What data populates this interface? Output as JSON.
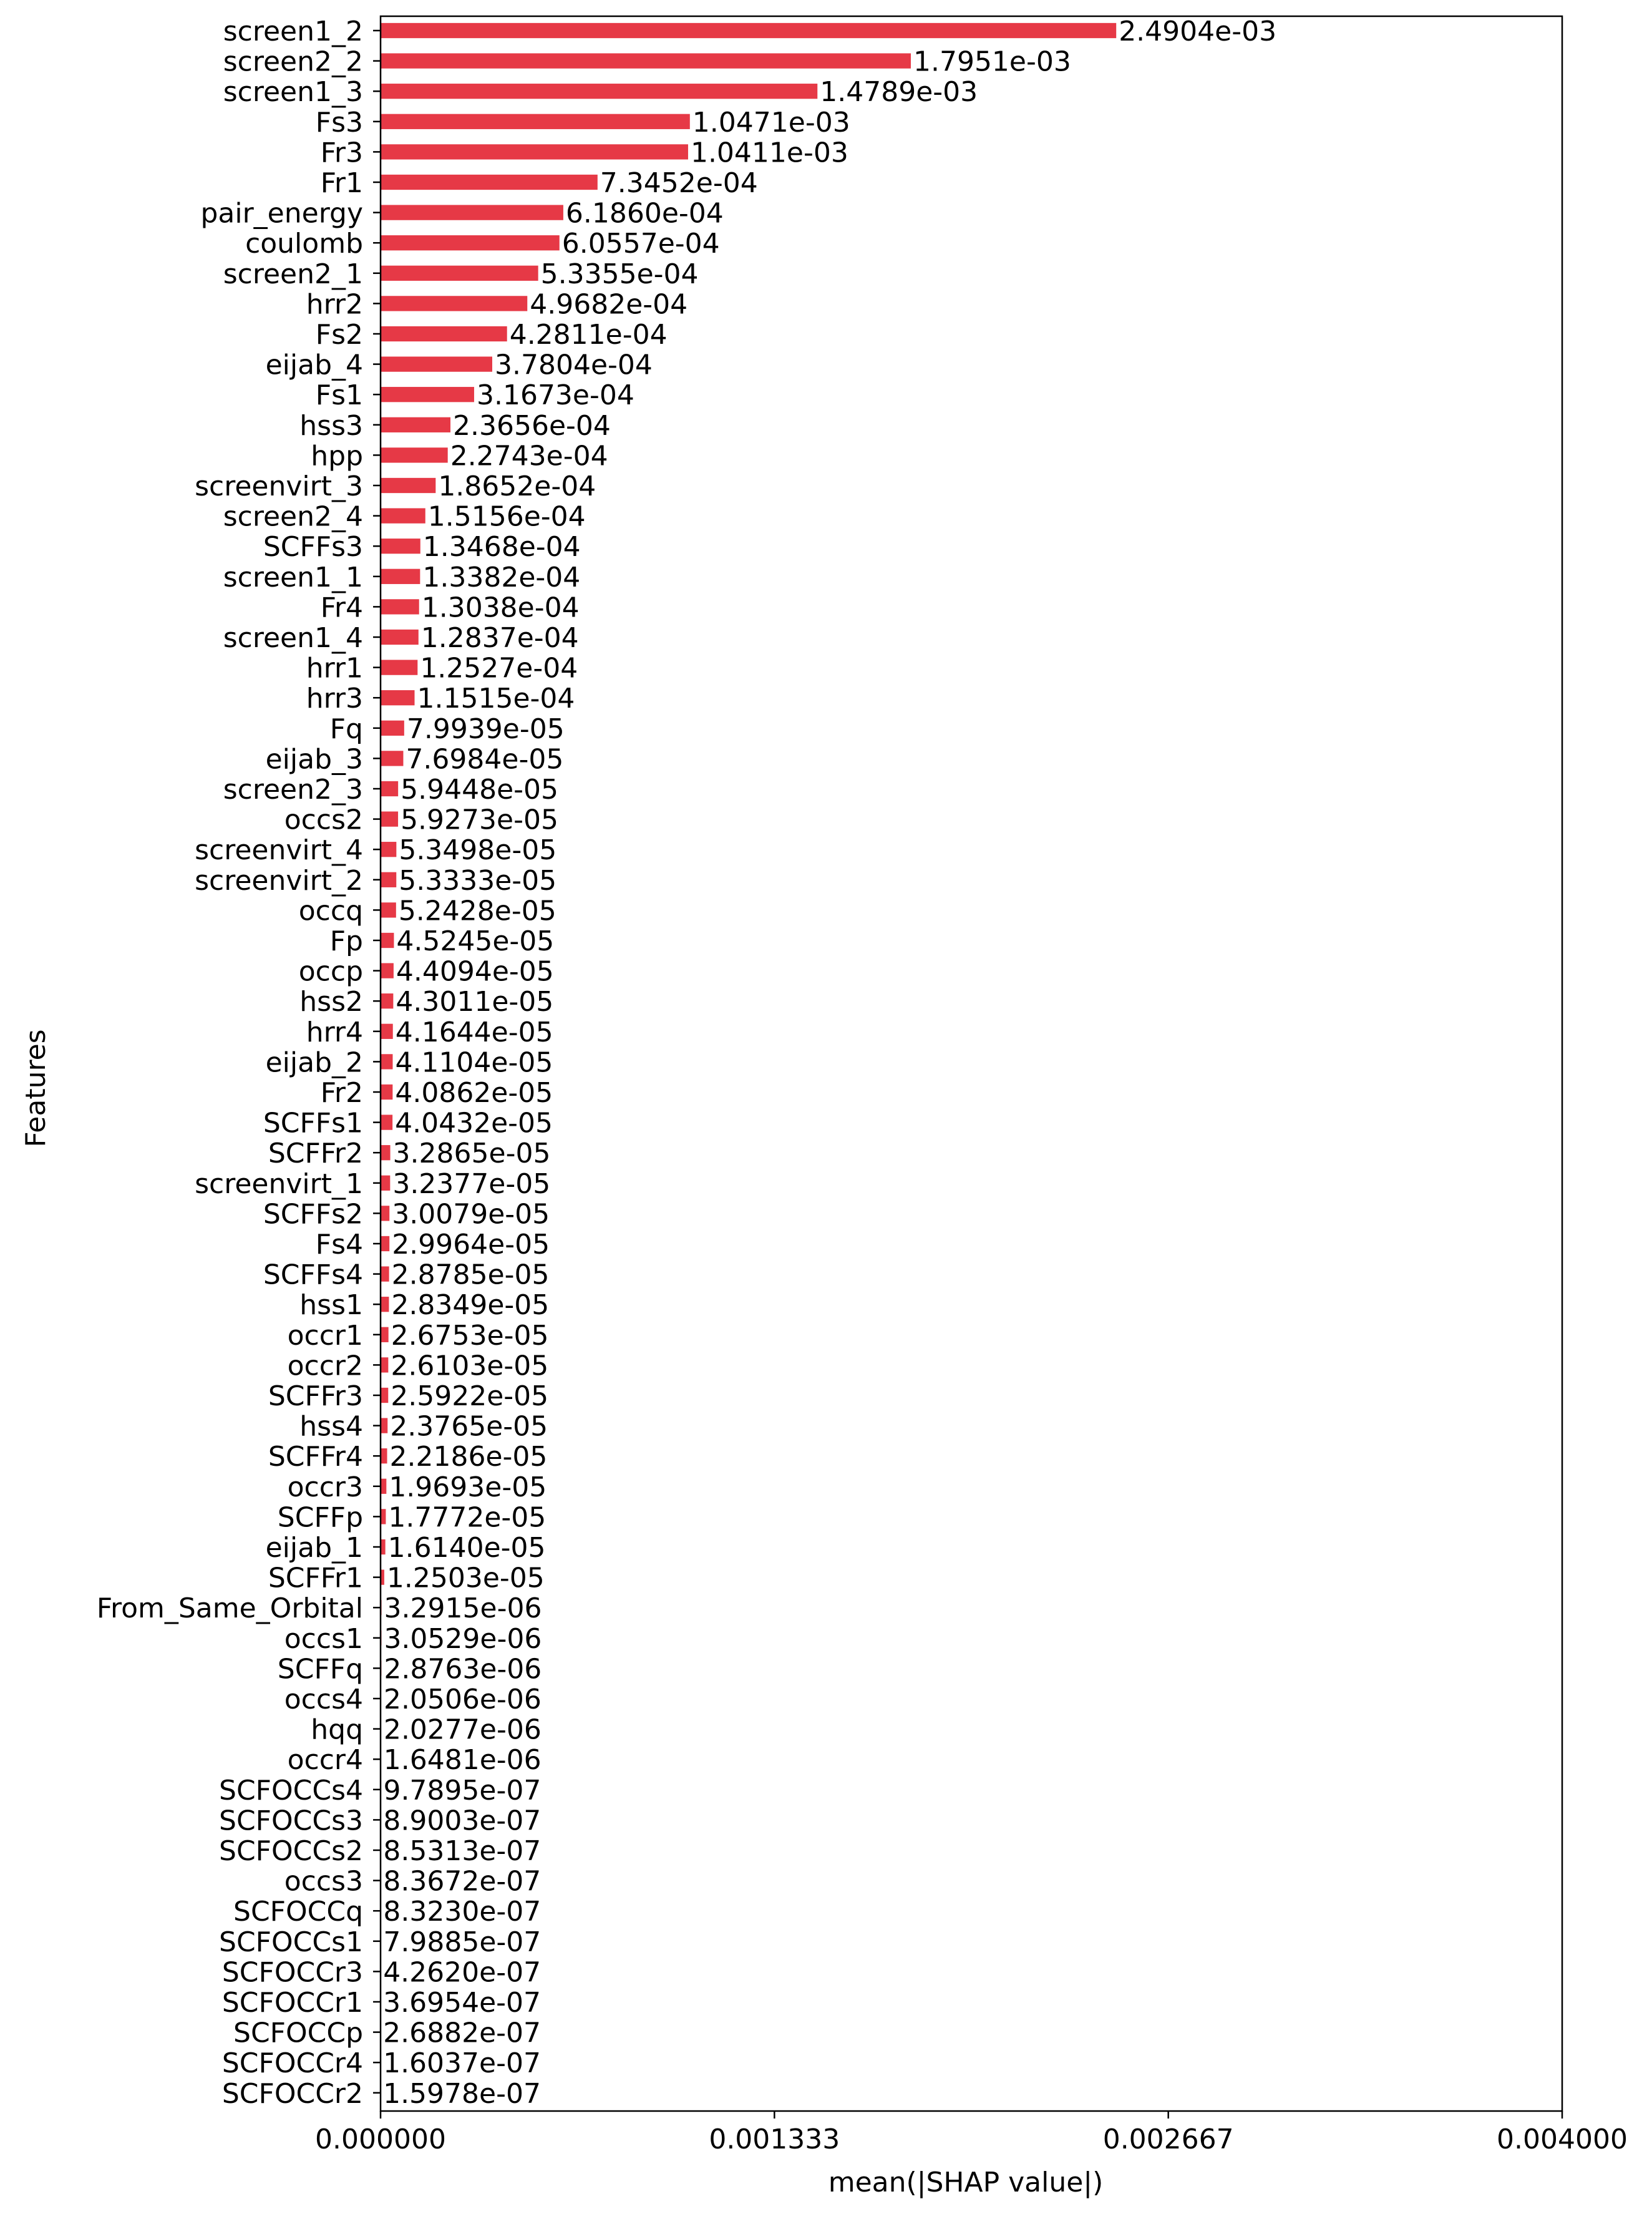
{
  "chart_data": {
    "type": "bar",
    "orientation": "horizontal",
    "title": "",
    "xlabel": "mean(|SHAP value|)",
    "ylabel": "Features",
    "xlim": [
      0,
      0.004
    ],
    "xticks": [
      "0.000000",
      "0.001333",
      "0.002667",
      "0.004000"
    ],
    "xtick_values": [
      0,
      0.0013333,
      0.0026667,
      0.004
    ],
    "bar_color": "#e63946",
    "grid": false,
    "legend": "none",
    "categories": [
      "screen1_2",
      "screen2_2",
      "screen1_3",
      "Fs3",
      "Fr3",
      "Fr1",
      "pair_energy",
      "coulomb",
      "screen2_1",
      "hrr2",
      "Fs2",
      "eijab_4",
      "Fs1",
      "hss3",
      "hpp",
      "screenvirt_3",
      "screen2_4",
      "SCFFs3",
      "screen1_1",
      "Fr4",
      "screen1_4",
      "hrr1",
      "hrr3",
      "Fq",
      "eijab_3",
      "screen2_3",
      "occs2",
      "screenvirt_4",
      "screenvirt_2",
      "occq",
      "Fp",
      "occp",
      "hss2",
      "hrr4",
      "eijab_2",
      "Fr2",
      "SCFFs1",
      "SCFFr2",
      "screenvirt_1",
      "SCFFs2",
      "Fs4",
      "SCFFs4",
      "hss1",
      "occr1",
      "occr2",
      "SCFFr3",
      "hss4",
      "SCFFr4",
      "occr3",
      "SCFFp",
      "eijab_1",
      "SCFFr1",
      "From_Same_Orbital",
      "occs1",
      "SCFFq",
      "occs4",
      "hqq",
      "occr4",
      "SCFOCCs4",
      "SCFOCCs3",
      "SCFOCCs2",
      "occs3",
      "SCFOCCq",
      "SCFOCCs1",
      "SCFOCCr3",
      "SCFOCCr1",
      "SCFOCCp",
      "SCFOCCr4",
      "SCFOCCr2"
    ],
    "values": [
      0.0024904,
      0.0017951,
      0.0014789,
      0.0010471,
      0.0010411,
      0.00073452,
      0.0006186,
      0.00060557,
      0.00053355,
      0.00049682,
      0.00042811,
      0.00037804,
      0.00031673,
      0.00023656,
      0.00022743,
      0.00018652,
      0.00015156,
      0.00013468,
      0.00013382,
      0.00013038,
      0.00012837,
      0.00012527,
      0.00011515,
      7.9939e-05,
      7.6984e-05,
      5.9448e-05,
      5.9273e-05,
      5.3498e-05,
      5.3333e-05,
      5.2428e-05,
      4.5245e-05,
      4.4094e-05,
      4.3011e-05,
      4.1644e-05,
      4.1104e-05,
      4.0862e-05,
      4.0432e-05,
      3.2865e-05,
      3.2377e-05,
      3.0079e-05,
      2.9964e-05,
      2.8785e-05,
      2.8349e-05,
      2.6753e-05,
      2.6103e-05,
      2.5922e-05,
      2.3765e-05,
      2.2186e-05,
      1.9693e-05,
      1.7772e-05,
      1.614e-05,
      1.2503e-05,
      3.2915e-06,
      3.0529e-06,
      2.8763e-06,
      2.0506e-06,
      2.0277e-06,
      1.6481e-06,
      9.7895e-07,
      8.9003e-07,
      8.5313e-07,
      8.3672e-07,
      8.323e-07,
      7.9885e-07,
      4.262e-07,
      3.6954e-07,
      2.6882e-07,
      1.6037e-07,
      1.5978e-07
    ],
    "value_labels": [
      "2.4904e-03",
      "1.7951e-03",
      "1.4789e-03",
      "1.0471e-03",
      "1.0411e-03",
      "7.3452e-04",
      "6.1860e-04",
      "6.0557e-04",
      "5.3355e-04",
      "4.9682e-04",
      "4.2811e-04",
      "3.7804e-04",
      "3.1673e-04",
      "2.3656e-04",
      "2.2743e-04",
      "1.8652e-04",
      "1.5156e-04",
      "1.3468e-04",
      "1.3382e-04",
      "1.3038e-04",
      "1.2837e-04",
      "1.2527e-04",
      "1.1515e-04",
      "7.9939e-05",
      "7.6984e-05",
      "5.9448e-05",
      "5.9273e-05",
      "5.3498e-05",
      "5.3333e-05",
      "5.2428e-05",
      "4.5245e-05",
      "4.4094e-05",
      "4.3011e-05",
      "4.1644e-05",
      "4.1104e-05",
      "4.0862e-05",
      "4.0432e-05",
      "3.2865e-05",
      "3.2377e-05",
      "3.0079e-05",
      "2.9964e-05",
      "2.8785e-05",
      "2.8349e-05",
      "2.6753e-05",
      "2.6103e-05",
      "2.5922e-05",
      "2.3765e-05",
      "2.2186e-05",
      "1.9693e-05",
      "1.7772e-05",
      "1.6140e-05",
      "1.2503e-05",
      "3.2915e-06",
      "3.0529e-06",
      "2.8763e-06",
      "2.0506e-06",
      "2.0277e-06",
      "1.6481e-06",
      "9.7895e-07",
      "8.9003e-07",
      "8.5313e-07",
      "8.3672e-07",
      "8.3230e-07",
      "7.9885e-07",
      "4.2620e-07",
      "3.6954e-07",
      "2.6882e-07",
      "1.6037e-07",
      "1.5978e-07"
    ]
  }
}
